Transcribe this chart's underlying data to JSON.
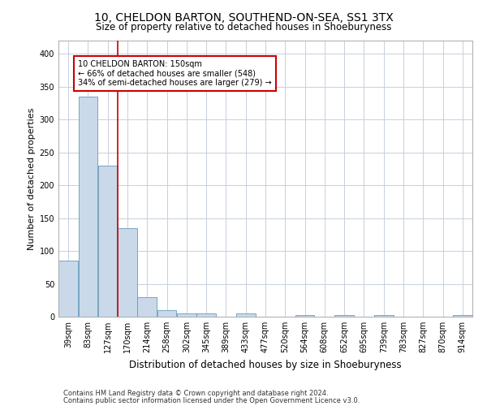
{
  "title": "10, CHELDON BARTON, SOUTHEND-ON-SEA, SS1 3TX",
  "subtitle": "Size of property relative to detached houses in Shoeburyness",
  "xlabel": "Distribution of detached houses by size in Shoeburyness",
  "ylabel": "Number of detached properties",
  "footnote1": "Contains HM Land Registry data © Crown copyright and database right 2024.",
  "footnote2": "Contains public sector information licensed under the Open Government Licence v3.0.",
  "categories": [
    "39sqm",
    "83sqm",
    "127sqm",
    "170sqm",
    "214sqm",
    "258sqm",
    "302sqm",
    "345sqm",
    "389sqm",
    "433sqm",
    "477sqm",
    "520sqm",
    "564sqm",
    "608sqm",
    "652sqm",
    "695sqm",
    "739sqm",
    "783sqm",
    "827sqm",
    "870sqm",
    "914sqm"
  ],
  "values": [
    85,
    335,
    230,
    135,
    30,
    10,
    5,
    5,
    0,
    5,
    0,
    0,
    3,
    0,
    3,
    0,
    3,
    0,
    0,
    0,
    3
  ],
  "bar_color": "#c9d9ea",
  "bar_edge_color": "#6699bb",
  "vline_x": 2.5,
  "vline_color": "#cc0000",
  "annotation_line1": "10 CHELDON BARTON: 150sqm",
  "annotation_line2": "← 66% of detached houses are smaller (548)",
  "annotation_line3": "34% of semi-detached houses are larger (279) →",
  "annotation_box_color": "#cc0000",
  "ylim": [
    0,
    420
  ],
  "yticks": [
    0,
    50,
    100,
    150,
    200,
    250,
    300,
    350,
    400
  ],
  "background_color": "#ffffff",
  "grid_color": "#c8d0dc",
  "title_fontsize": 10,
  "subtitle_fontsize": 8.5,
  "ylabel_fontsize": 8,
  "xlabel_fontsize": 8.5,
  "tick_fontsize": 7,
  "footnote_fontsize": 6
}
